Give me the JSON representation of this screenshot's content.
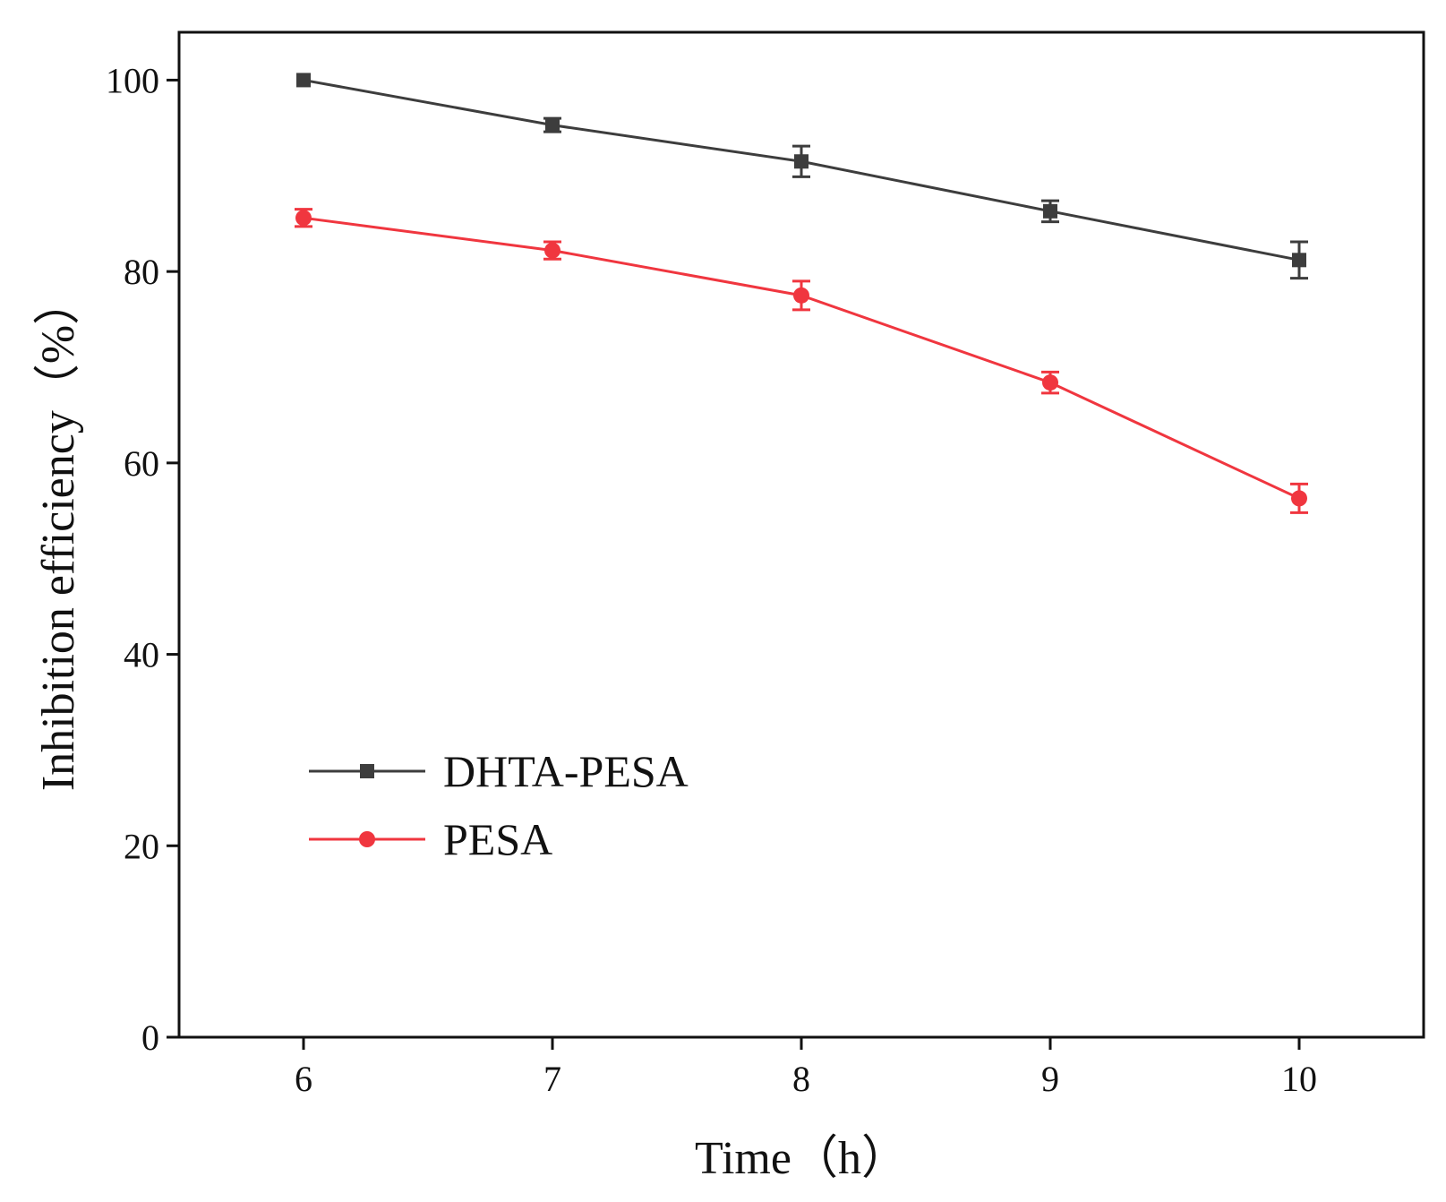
{
  "chart_data": {
    "type": "line",
    "title": "",
    "xlabel": "Time（h）",
    "ylabel": "Inhibition efficiency（%）",
    "x": [
      6,
      7,
      8,
      9,
      10
    ],
    "xlim": [
      5.5,
      10.5
    ],
    "ylim": [
      0,
      105
    ],
    "xticks": [
      6,
      7,
      8,
      9,
      10
    ],
    "yticks": [
      0,
      20,
      40,
      60,
      80,
      100
    ],
    "grid": false,
    "legend_position": "lower-left",
    "series": [
      {
        "name": "DHTA-PESA",
        "marker": "square",
        "color": "#3d3d3d",
        "values": [
          100,
          95.3,
          91.5,
          86.3,
          81.2
        ],
        "errors": [
          0.0,
          0.7,
          1.6,
          1.1,
          1.9
        ]
      },
      {
        "name": "PESA",
        "marker": "circle",
        "color": "#f0363f",
        "values": [
          85.6,
          82.2,
          77.5,
          68.4,
          56.3
        ],
        "errors": [
          0.9,
          0.9,
          1.5,
          1.1,
          1.5
        ]
      }
    ]
  }
}
